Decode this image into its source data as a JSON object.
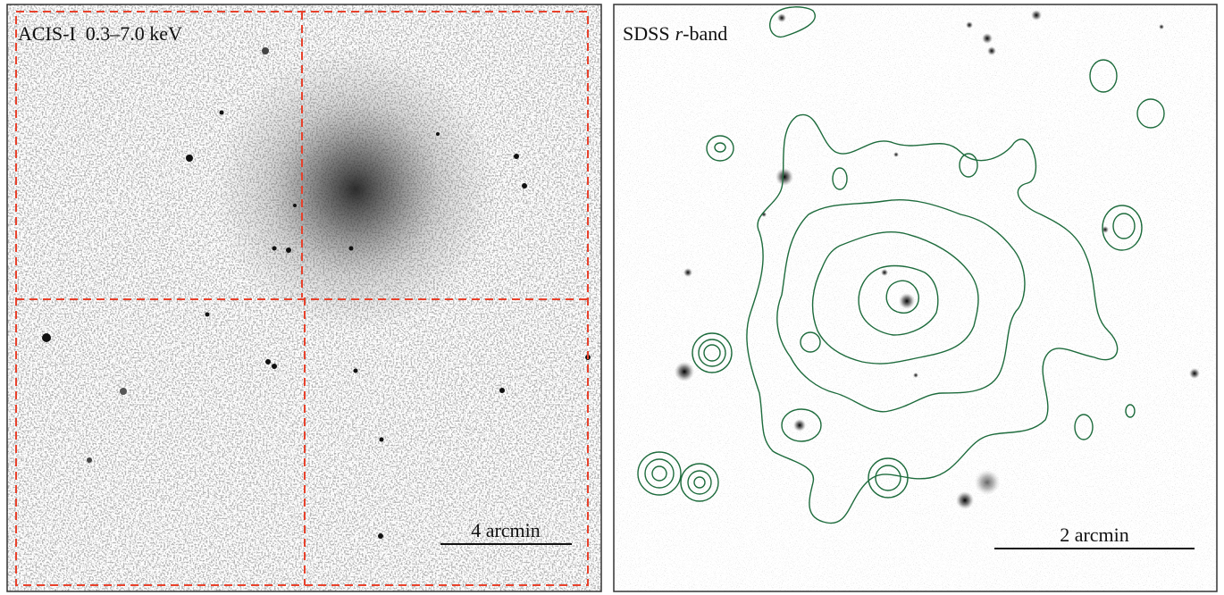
{
  "panels": [
    {
      "label": "ACIS-I  0.3–7.0 keV",
      "scale_bar": "4 arcmin"
    },
    {
      "label": [
        "SDSS",
        "r",
        "-band"
      ],
      "scale_bar": "2 arcmin"
    }
  ]
}
